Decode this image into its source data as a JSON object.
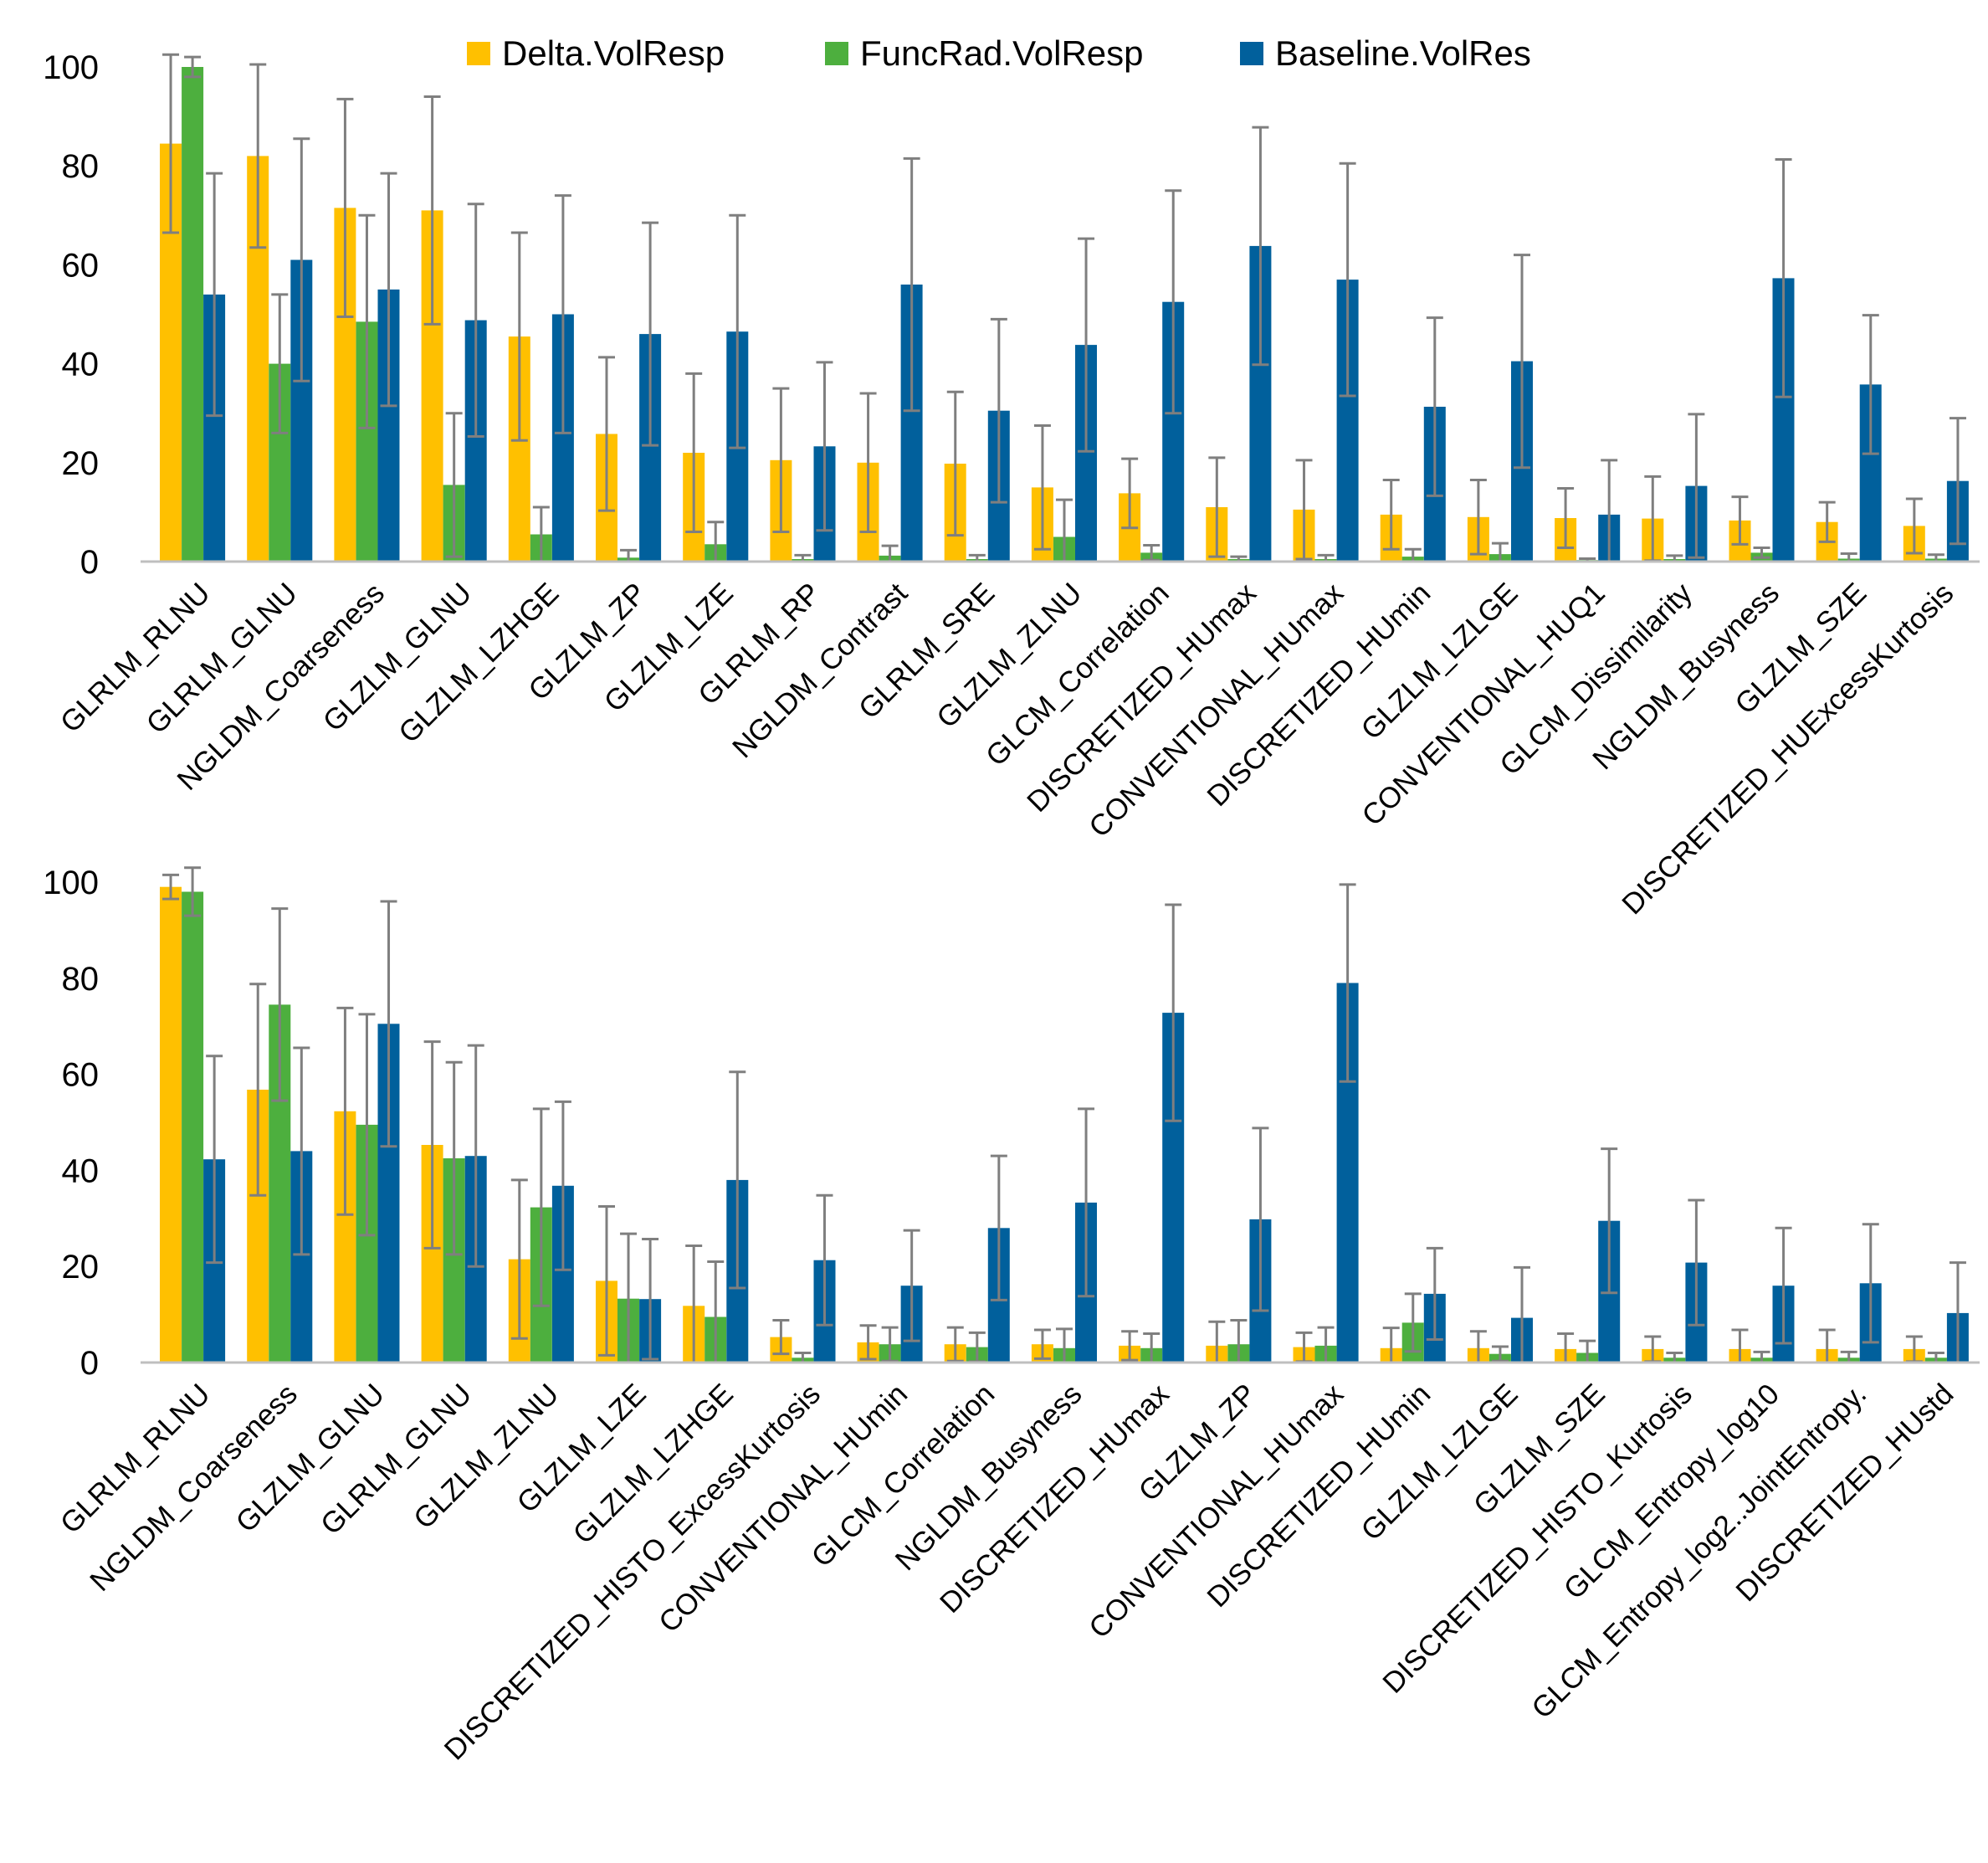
{
  "colors": {
    "Delta.VolResp": "#FFC000",
    "FuncRad.VolResp": "#4DAF3E",
    "Baseline.VolRes": "#01609C",
    "error_bar": "#7F7F7F",
    "axis": "#BFBFBF"
  },
  "legend": {
    "position": "top-center",
    "items": [
      "Delta.VolResp",
      "FuncRad.VolResp",
      "Baseline.VolRes"
    ]
  },
  "chart_data": [
    {
      "type": "bar",
      "title": "",
      "xlabel": "",
      "ylabel": "",
      "ylim": [
        0,
        100
      ],
      "yticks": [
        "0",
        "20",
        "40",
        "60",
        "80",
        "100"
      ],
      "error_bars": true,
      "categories": [
        "GLRLM_RLNU",
        "GLRLM_GLNU",
        "NGLDM_Coarseness",
        "GLZLM_GLNU",
        "GLZLM_LZHGE",
        "GLZLM_ZP",
        "GLZLM_LZE",
        "GLRLM_RP",
        "NGLDM_Contrast",
        "GLRLM_SRE",
        "GLZLM_ZLNU",
        "GLCM_Correlation",
        "DISCRETIZED_HUmax",
        "CONVENTIONAL_HUmax",
        "DISCRETIZED_HUmin",
        "GLZLM_LZLGE",
        "CONVENTIONAL_HUQ1",
        "GLCM_Dissimilarity",
        "NGLDM_Busyness",
        "GLZLM_SZE",
        "DISCRETIZED_HUExcessKurtosis"
      ],
      "series": [
        {
          "name": "Delta.VolResp",
          "values": [
            84.5,
            82,
            71.5,
            71,
            45.5,
            25.8,
            22,
            20.5,
            20,
            19.8,
            15,
            13.8,
            11,
            10.5,
            9.5,
            9,
            8.8,
            8.7,
            8.3,
            8,
            7.2
          ],
          "errors": [
            18,
            18.5,
            22,
            23,
            21,
            15.5,
            16,
            14.5,
            14,
            14.5,
            12.5,
            7,
            10,
            10,
            7,
            7.5,
            6,
            8.5,
            4.8,
            4,
            5.5
          ]
        },
        {
          "name": "FuncRad.VolResp",
          "values": [
            100,
            40,
            48.5,
            15.5,
            5.5,
            0.8,
            3.5,
            0.5,
            1.2,
            0.5,
            5,
            1.8,
            0.5,
            0.5,
            1,
            1.5,
            0.3,
            0.5,
            1.8,
            0.6,
            0.6
          ],
          "errors": [
            2,
            14,
            21.5,
            14.5,
            5.5,
            1.5,
            4.5,
            0.8,
            2,
            0.8,
            7.5,
            1.5,
            0.5,
            0.8,
            1.5,
            2.2,
            0.3,
            0.7,
            1,
            1,
            0.8
          ]
        },
        {
          "name": "Baseline.VolRes",
          "values": [
            54,
            61,
            55,
            48.8,
            50,
            46,
            46.5,
            23.3,
            56,
            30.5,
            43.8,
            52.5,
            63.8,
            57,
            31.3,
            40.5,
            9.5,
            15.3,
            57.3,
            35.8,
            16.3
          ]
        },
        {
          "name": "Baseline.VolRes.errors",
          "values": [
            24.5,
            24.5,
            23.5,
            23.5,
            24,
            22.5,
            23.5,
            17,
            25.5,
            18.5,
            21.5,
            22.5,
            24,
            23.5,
            18,
            21.5,
            11,
            14.5,
            24,
            14,
            12.7
          ]
        }
      ]
    },
    {
      "type": "bar",
      "title": "",
      "xlabel": "",
      "ylabel": "",
      "ylim": [
        0,
        100
      ],
      "yticks": [
        "0",
        "20",
        "40",
        "60",
        "80",
        "100"
      ],
      "error_bars": true,
      "categories": [
        "GLRLM_RLNU",
        "NGLDM_Coarseness",
        "GLZLM_GLNU",
        "GLRLM_GLNU",
        "GLZLM_ZLNU",
        "GLZLM_LZE",
        "GLZLM_LZHGE",
        "DISCRETIZED_HISTO_ExcessKurtosis",
        "CONVENTIONAL_HUmin",
        "GLCM_Correlation",
        "NGLDM_Busyness",
        "DISCRETIZED_HUmax",
        "GLZLM_ZP",
        "CONVENTIONAL_HUmax",
        "DISCRETIZED_HUmin",
        "GLZLM_LZLGE",
        "GLZLM_SZE",
        "DISCRETIZED_HISTO_Kurtosis",
        "GLCM_Entropy_log10",
        "GLCM_Entropy_log2..JointEntropy.",
        "DISCRETIZED_HUstd"
      ],
      "series": [
        {
          "name": "Delta.VolResp",
          "values": [
            99,
            56.8,
            52.3,
            45.3,
            21.5,
            17,
            11.8,
            5.3,
            4.2,
            3.8,
            3.8,
            3.5,
            3.5,
            3.2,
            3,
            3,
            2.8,
            2.8,
            2.8,
            2.8,
            2.8
          ],
          "errors": [
            2.5,
            22,
            21.5,
            21.5,
            16.5,
            15.5,
            12.5,
            3.5,
            3.5,
            3.5,
            3,
            3,
            5,
            3,
            4.2,
            3.5,
            3.2,
            2.6,
            4,
            4,
            2.6
          ]
        },
        {
          "name": "FuncRad.VolResp",
          "values": [
            98,
            74.5,
            49.5,
            42.5,
            32.3,
            13.3,
            9.5,
            1,
            3.8,
            3.2,
            3,
            3,
            3.8,
            3.5,
            8.3,
            1.8,
            2,
            1,
            1,
            1,
            1
          ],
          "errors": [
            5,
            20,
            23,
            20,
            20.5,
            13.5,
            11.5,
            1,
            3.5,
            3,
            4,
            3,
            5,
            3.8,
            6,
            1.5,
            2.5,
            1,
            1.2,
            1.2,
            1
          ]
        },
        {
          "name": "Baseline.VolRes",
          "values": [
            42.3,
            44,
            70.5,
            43,
            36.8,
            13.2,
            38,
            21.3,
            16,
            28,
            33.3,
            72.8,
            29.8,
            79,
            14.3,
            9.3,
            29.5,
            20.8,
            16,
            16.5,
            10.3
          ]
        },
        {
          "name": "Baseline.VolRes.errors",
          "values": [
            21.5,
            21.5,
            25.5,
            23,
            17.5,
            12.5,
            22.5,
            13.5,
            11.5,
            15,
            19.5,
            22.5,
            19,
            20.5,
            9.5,
            10.5,
            15,
            13,
            12,
            12.3,
            10.5
          ]
        }
      ]
    }
  ]
}
